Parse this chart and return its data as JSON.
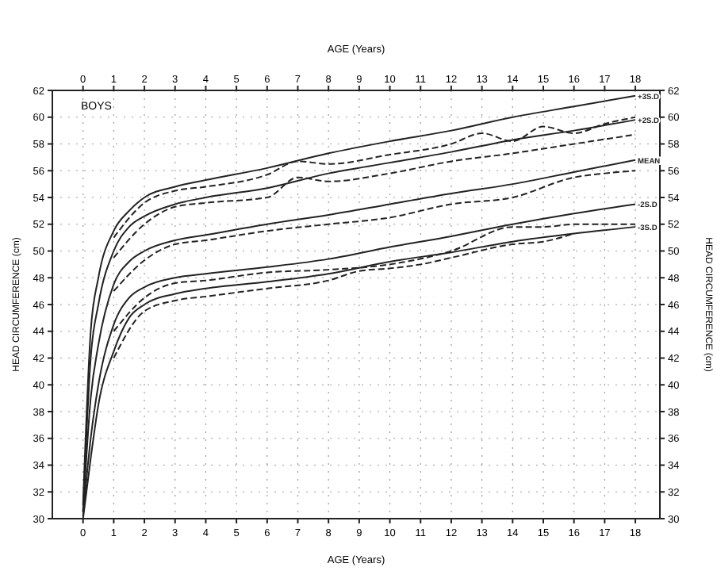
{
  "chart_data": {
    "type": "line",
    "x2label": "AGE (Years)",
    "xlabel": "AGE (Years)",
    "ylabel": "HEAD CIRCUMFERENCE (cm)",
    "y2label": "HEAD CIRCUMFERENCE (cm)",
    "annotations": [
      "BOYS"
    ],
    "xlim": [
      -1,
      18.8
    ],
    "xticks": [
      0,
      1,
      2,
      3,
      4,
      5,
      6,
      7,
      8,
      9,
      10,
      11,
      12,
      13,
      14,
      15,
      16,
      17,
      18
    ],
    "x2lim": [
      -1,
      18.8
    ],
    "x2ticks": [
      0,
      1,
      2,
      3,
      4,
      5,
      6,
      7,
      8,
      9,
      10,
      11,
      12,
      13,
      14,
      15,
      16,
      17,
      18
    ],
    "ylim": [
      30,
      62
    ],
    "yticks": [
      30,
      32,
      34,
      36,
      38,
      40,
      42,
      44,
      46,
      48,
      50,
      52,
      54,
      56,
      58,
      60,
      62
    ],
    "y2lim": [
      30,
      62
    ],
    "y2ticks": [
      30,
      32,
      34,
      36,
      38,
      40,
      42,
      44,
      46,
      48,
      50,
      52,
      54,
      56,
      58,
      60,
      62
    ],
    "grid": true,
    "marker": "none",
    "series": [
      {
        "name": "+3S.D",
        "color": "#222222",
        "line_style": "solid",
        "x": [
          0,
          0.25,
          0.5,
          1,
          1.5,
          2,
          3,
          4,
          6,
          8,
          10,
          12,
          14,
          16,
          18
        ],
        "values": [
          31,
          44,
          48,
          51.5,
          53,
          54,
          54.8,
          55.3,
          56.2,
          57.3,
          58.2,
          59,
          60,
          60.8,
          61.6
        ]
      },
      {
        "name": "+2S.D",
        "color": "#222222",
        "line_style": "solid",
        "x": [
          0,
          0.25,
          0.5,
          1,
          1.5,
          2,
          3,
          4,
          6,
          8,
          10,
          12,
          14,
          16,
          18
        ],
        "values": [
          30.5,
          42,
          46,
          50,
          51.8,
          52.6,
          53.5,
          54,
          54.7,
          55.8,
          56.6,
          57.4,
          58.3,
          59,
          59.8
        ]
      },
      {
        "name": "MEAN",
        "color": "#222222",
        "line_style": "solid",
        "x": [
          0,
          0.25,
          0.5,
          1,
          1.5,
          2,
          3,
          4,
          6,
          8,
          10,
          12,
          14,
          16,
          18
        ],
        "values": [
          30.5,
          39,
          43,
          47.5,
          49.2,
          50,
          50.8,
          51.2,
          52,
          52.7,
          53.5,
          54.3,
          55,
          55.9,
          56.8
        ]
      },
      {
        "name": "-2S.D",
        "color": "#222222",
        "line_style": "solid",
        "x": [
          0,
          0.25,
          0.5,
          1,
          1.5,
          2,
          3,
          4,
          6,
          8,
          10,
          12,
          14,
          16,
          18
        ],
        "values": [
          30.2,
          36,
          40,
          44.5,
          46.5,
          47.3,
          48,
          48.3,
          48.8,
          49.4,
          50.3,
          51.1,
          52,
          52.8,
          53.5
        ]
      },
      {
        "name": "-3S.D",
        "color": "#222222",
        "line_style": "solid",
        "x": [
          0,
          0.25,
          0.5,
          1,
          1.5,
          2,
          3,
          4,
          6,
          8,
          10,
          12,
          14,
          16,
          18
        ],
        "values": [
          30,
          34.5,
          38.5,
          42.5,
          45,
          46,
          46.8,
          47.2,
          47.7,
          48.3,
          49.2,
          49.9,
          50.7,
          51.3,
          51.8
        ]
      },
      {
        "color": "#222222",
        "line_style": "dashed",
        "x": [
          1,
          2,
          3,
          4,
          6,
          7,
          8,
          10,
          12,
          13,
          14,
          15,
          16,
          17,
          18
        ],
        "values": [
          51,
          53.6,
          54.5,
          54.8,
          55.7,
          56.7,
          56.5,
          57.2,
          58,
          58.8,
          58.2,
          59.3,
          58.8,
          59.5,
          60
        ]
      },
      {
        "color": "#222222",
        "line_style": "dashed",
        "x": [
          1,
          2,
          3,
          4,
          6,
          7,
          8,
          10,
          12,
          14,
          16,
          18
        ],
        "values": [
          49.5,
          52,
          53.3,
          53.6,
          54,
          55.5,
          55.2,
          55.8,
          56.7,
          57.3,
          58,
          58.7
        ]
      },
      {
        "color": "#222222",
        "line_style": "dashed",
        "x": [
          1,
          2,
          3,
          4,
          6,
          8,
          10,
          12,
          14,
          16,
          17,
          18
        ],
        "values": [
          47,
          49.3,
          50.5,
          50.8,
          51.5,
          52,
          52.5,
          53.5,
          54,
          55.5,
          55.8,
          56
        ]
      },
      {
        "color": "#222222",
        "line_style": "dashed",
        "x": [
          1,
          2,
          3,
          4,
          6,
          8,
          10,
          12,
          14,
          15,
          16,
          18
        ],
        "values": [
          44,
          46.5,
          47.6,
          47.8,
          48.4,
          48.6,
          49,
          50,
          51.8,
          51.8,
          52,
          52
        ]
      },
      {
        "color": "#222222",
        "line_style": "dashed",
        "x": [
          1,
          2,
          3,
          4,
          6,
          8,
          9,
          10,
          11,
          12,
          14,
          15,
          16
        ],
        "values": [
          42,
          45.5,
          46.3,
          46.6,
          47.2,
          47.8,
          48.5,
          48.7,
          49,
          49.5,
          50.5,
          50.7,
          51.3
        ]
      }
    ]
  }
}
